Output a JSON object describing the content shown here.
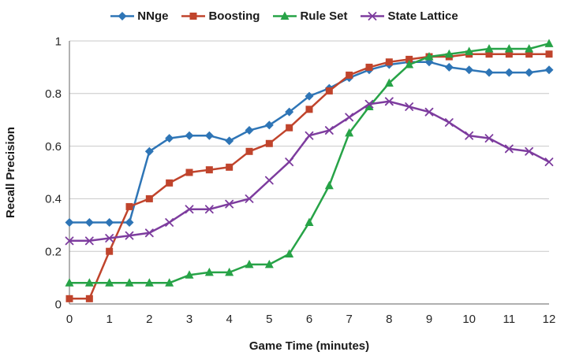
{
  "chart_data": {
    "type": "line",
    "title": "",
    "xlabel": "Game Time (minutes)",
    "ylabel": "Recall Precision",
    "xlim": [
      0,
      12
    ],
    "ylim": [
      0,
      1
    ],
    "xticks": [
      0,
      1,
      2,
      3,
      4,
      5,
      6,
      7,
      8,
      9,
      10,
      11,
      12
    ],
    "yticks": [
      0,
      0.2,
      0.4,
      0.6,
      0.8,
      1
    ],
    "grid": "horizontal",
    "legend_position": "top",
    "x": [
      0,
      0.5,
      1,
      1.5,
      2,
      2.5,
      3,
      3.5,
      4,
      4.5,
      5,
      5.5,
      6,
      6.5,
      7,
      7.5,
      8,
      8.5,
      9,
      9.5,
      10,
      10.5,
      11,
      11.5,
      12
    ],
    "series": [
      {
        "name": "NNge",
        "color": "#2E75B6",
        "marker": "diamond",
        "values": [
          0.31,
          0.31,
          0.31,
          0.31,
          0.58,
          0.63,
          0.64,
          0.64,
          0.62,
          0.66,
          0.68,
          0.73,
          0.79,
          0.82,
          0.86,
          0.89,
          0.91,
          0.92,
          0.92,
          0.9,
          0.89,
          0.88,
          0.88,
          0.88,
          0.89
        ]
      },
      {
        "name": "Boosting",
        "color": "#C0442C",
        "marker": "square",
        "values": [
          0.02,
          0.02,
          0.2,
          0.37,
          0.4,
          0.46,
          0.5,
          0.51,
          0.52,
          0.58,
          0.61,
          0.67,
          0.74,
          0.81,
          0.87,
          0.9,
          0.92,
          0.93,
          0.94,
          0.94,
          0.95,
          0.95,
          0.95,
          0.95,
          0.95
        ]
      },
      {
        "name": "Rule Set",
        "color": "#27A347",
        "marker": "triangle",
        "values": [
          0.08,
          0.08,
          0.08,
          0.08,
          0.08,
          0.08,
          0.11,
          0.12,
          0.12,
          0.15,
          0.15,
          0.19,
          0.31,
          0.45,
          0.65,
          0.75,
          0.84,
          0.91,
          0.94,
          0.95,
          0.96,
          0.97,
          0.97,
          0.97,
          0.99
        ]
      },
      {
        "name": "State Lattice",
        "color": "#7D3C9E",
        "marker": "x",
        "values": [
          0.24,
          0.24,
          0.25,
          0.26,
          0.27,
          0.31,
          0.36,
          0.36,
          0.38,
          0.4,
          0.47,
          0.54,
          0.64,
          0.66,
          0.71,
          0.76,
          0.77,
          0.75,
          0.73,
          0.69,
          0.64,
          0.63,
          0.59,
          0.58,
          0.54
        ]
      }
    ]
  }
}
